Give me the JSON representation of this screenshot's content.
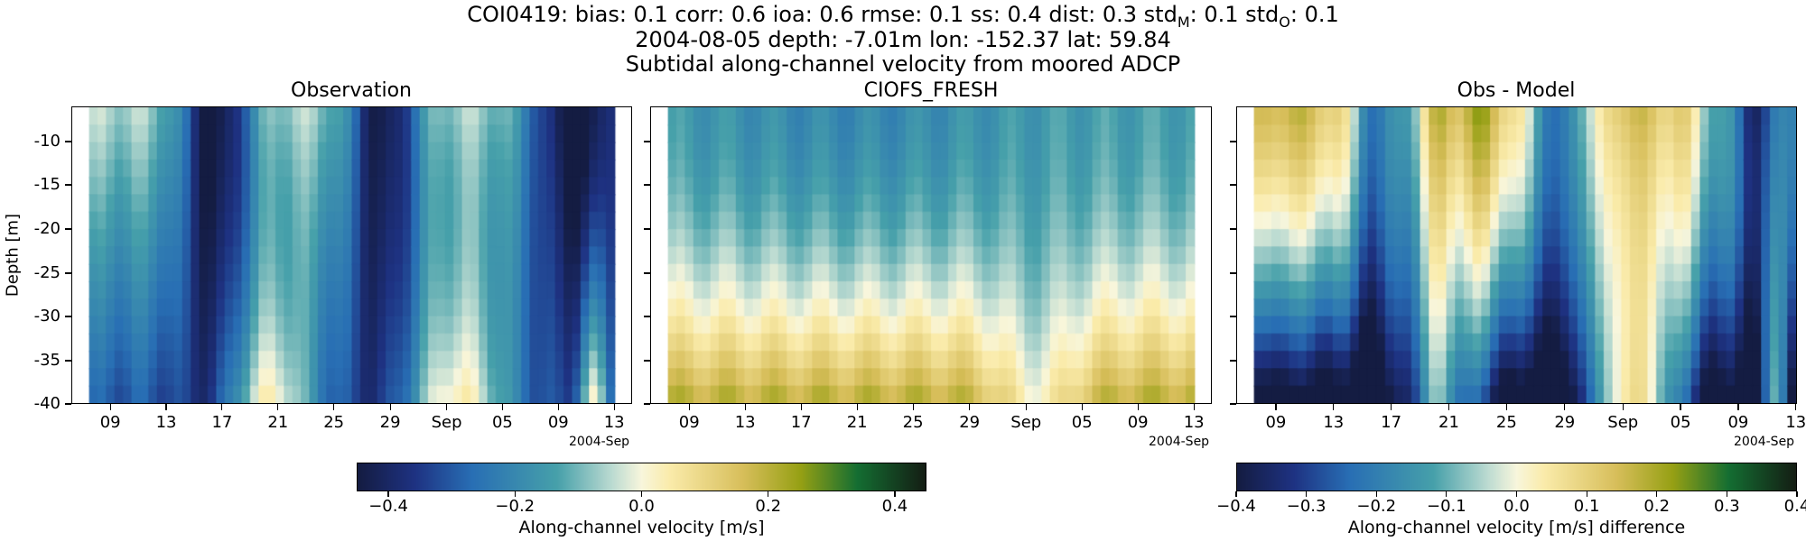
{
  "titles": {
    "stats_pre": "COI0419: bias: 0.1  corr: 0.6  ioa: 0.6  rmse: 0.1  ss: 0.4  dist: 0.3  std",
    "stats_sub_m": "M",
    "stats_mid": ": 0.1  std",
    "stats_sub_o": "O",
    "stats_post": ": 0.1",
    "line2": "2004-08-05 depth: -7.01m lon: -152.37 lat: 59.84",
    "line3": "Subtidal along-channel velocity from moored ADCP"
  },
  "panels": [
    {
      "title": "Observation"
    },
    {
      "title": "CIOFS_FRESH"
    },
    {
      "title": "Obs - Model"
    }
  ],
  "axes": {
    "ylabel": "Depth [m]",
    "yticks": [
      "-10",
      "-15",
      "-20",
      "-25",
      "-30",
      "-35",
      "-40"
    ],
    "xticks": [
      "09",
      "13",
      "17",
      "21",
      "25",
      "29",
      "Sep",
      "05",
      "09",
      "13"
    ],
    "xoffset_label": "2004-Sep"
  },
  "colorbars": [
    {
      "label": "Along-channel velocity [m/s]",
      "ticks": [
        "−0.4",
        "−0.2",
        "0.0",
        "0.2",
        "0.4"
      ]
    },
    {
      "label": "Along-channel velocity [m/s] difference",
      "ticks": [
        "−0.4",
        "−0.3",
        "−0.2",
        "−0.1",
        "0.0",
        "0.1",
        "0.2",
        "0.3",
        "0.4"
      ]
    }
  ],
  "chart_data": {
    "type": "heatmap",
    "title": "COI0419: bias: 0.1 corr: 0.6 ioa: 0.6 rmse: 0.1 ss: 0.4 dist: 0.3 stdM: 0.1 stdO: 0.1",
    "subtitle": "2004-08-05 depth: -7.01m lon: -152.37 lat: 59.84 / Subtidal along-channel velocity from moored ADCP",
    "x_range": [
      "2004-08-06",
      "2004-09-14"
    ],
    "ylabel": "Depth [m]",
    "ylim": [
      -40,
      -6
    ],
    "colormap": "diverging navy-teal-white-yellow-olive-green",
    "depth_bins": [
      -7,
      -9,
      -11,
      -13,
      -15,
      -17,
      -19,
      -21,
      -23,
      -25,
      -27,
      -29,
      -31,
      -33,
      -35,
      -37,
      -39
    ],
    "panels": [
      {
        "name": "Observation",
        "clim": [
          -0.45,
          0.45
        ],
        "description_points": [
          {
            "date": "2004-08-15",
            "surface": -0.45,
            "bottom": -0.05
          },
          {
            "date": "2004-08-20",
            "surface": -0.15,
            "bottom": 0.12
          },
          {
            "date": "2004-08-27",
            "surface": -0.42,
            "bottom": 0.08
          },
          {
            "date": "2004-09-01",
            "surface": -0.12,
            "bottom": 0.13
          },
          {
            "date": "2004-09-09",
            "surface": -0.45,
            "bottom": 0.0
          },
          {
            "date": "2004-09-12",
            "surface": -0.45,
            "bottom": 0.2
          }
        ]
      },
      {
        "name": "CIOFS_FRESH",
        "clim": [
          -0.45,
          0.45
        ],
        "description_points": [
          {
            "date": "2004-08-10",
            "surface": -0.12,
            "bottom": 0.13
          },
          {
            "date": "2004-08-25",
            "surface": -0.18,
            "bottom": 0.12
          },
          {
            "date": "2004-09-03",
            "surface": -0.2,
            "bottom": 0.0
          },
          {
            "date": "2004-09-10",
            "surface": -0.12,
            "bottom": 0.12
          }
        ]
      },
      {
        "name": "Obs - Model",
        "clim": [
          -0.4,
          0.4
        ],
        "description_points": [
          {
            "date": "2004-08-15",
            "surface": -0.4,
            "bottom": -0.05
          },
          {
            "date": "2004-09-01",
            "surface": 0.12,
            "bottom": 0.25
          },
          {
            "date": "2004-09-12",
            "surface": -0.4,
            "bottom": 0.15
          }
        ]
      }
    ]
  }
}
